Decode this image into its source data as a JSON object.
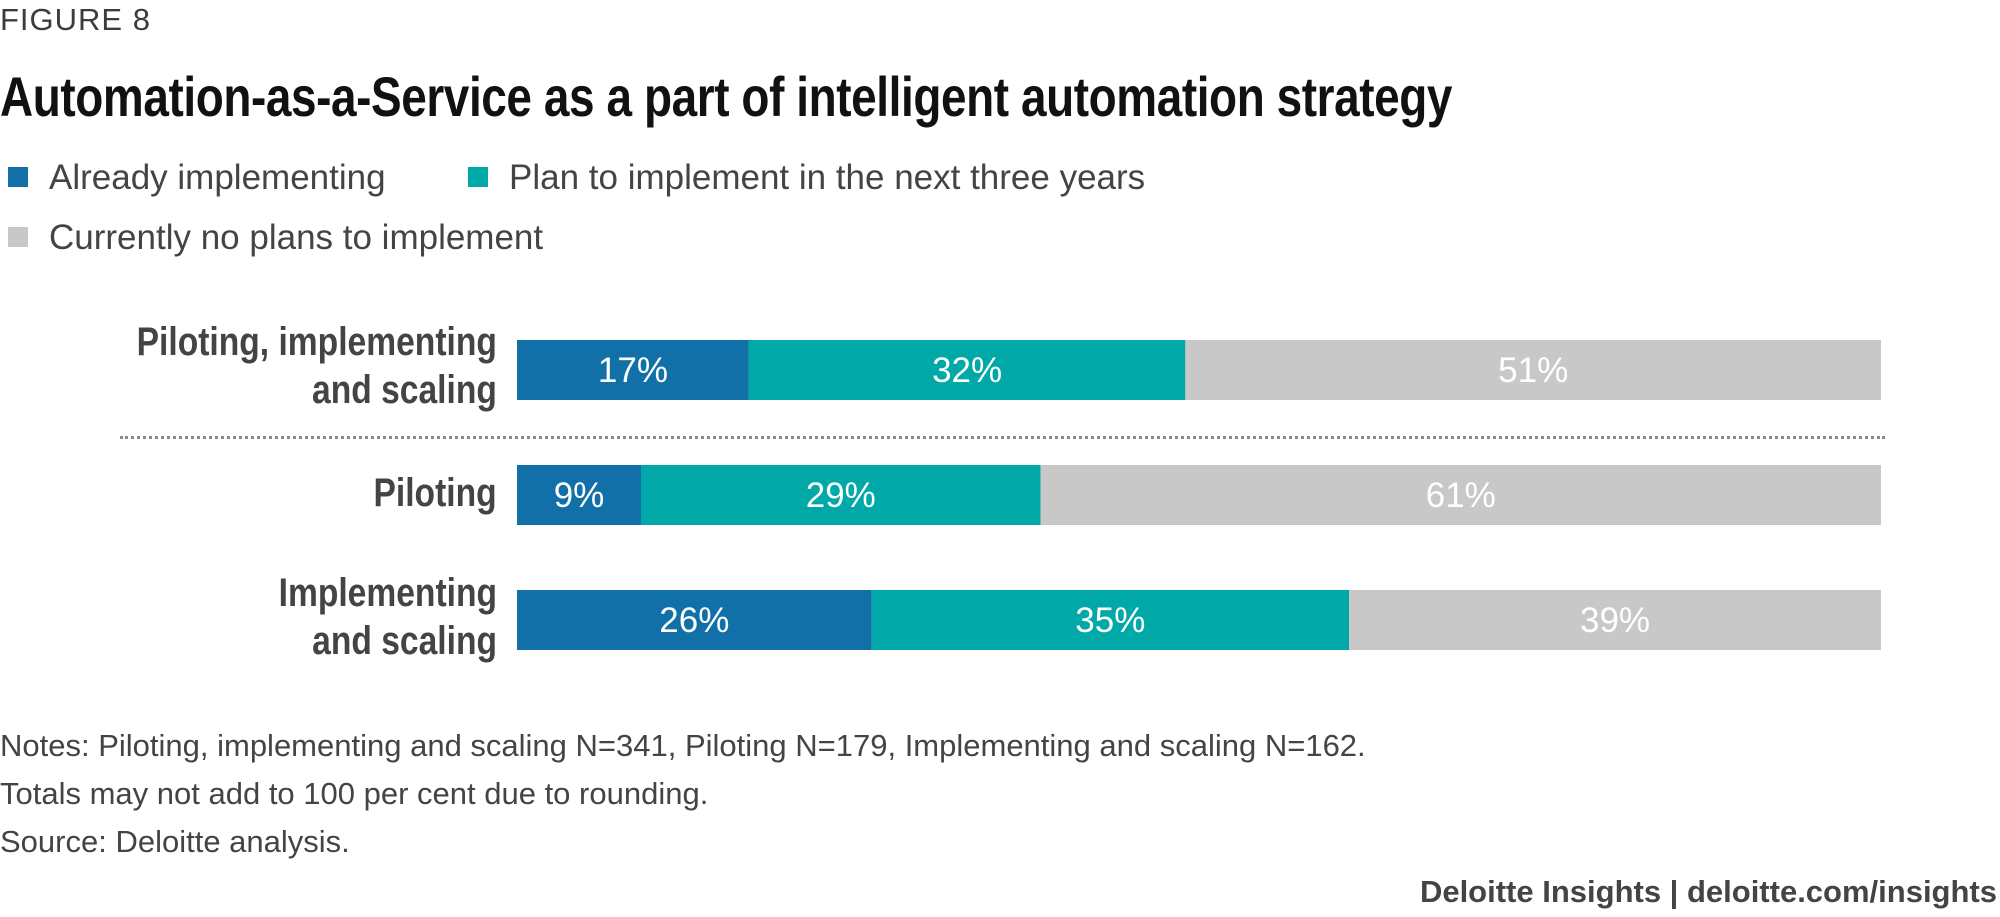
{
  "figure_label": "FIGURE 8",
  "title": "Automation-as-a-Service as a part of intelligent automation strategy",
  "notes": [
    "Notes: Piloting, implementing and scaling N=341, Piloting N=179, Implementing and scaling N=162.",
    "Totals may not add to 100 per cent due to rounding.",
    "Source: Deloitte analysis."
  ],
  "footer": "Deloitte Insights | deloitte.com/insights",
  "colors": {
    "already": "#1270a8",
    "plan": "#00a8a8",
    "no_plans": "#c8c8c8"
  },
  "chart_data": {
    "type": "bar",
    "orientation": "horizontal",
    "stacked": true,
    "title": "Automation-as-a-Service as a part of intelligent automation strategy",
    "xlabel": "",
    "ylabel": "",
    "xlim": [
      0,
      100
    ],
    "legend_position": "top-left",
    "categories": [
      [
        "Piloting, implementing",
        "and scaling"
      ],
      [
        "Piloting"
      ],
      [
        "Implementing",
        "and scaling"
      ]
    ],
    "series": [
      {
        "name": "Already implementing",
        "color": "#1270a8",
        "values": [
          17,
          9,
          26
        ],
        "labels": [
          "17%",
          "9%",
          "26%"
        ]
      },
      {
        "name": "Plan to implement in the next three years",
        "color": "#00a8a8",
        "values": [
          32,
          29,
          35
        ],
        "labels": [
          "32%",
          "29%",
          "35%"
        ]
      },
      {
        "name": "Currently no plans to implement",
        "color": "#c8c8c8",
        "values": [
          51,
          61,
          39
        ],
        "labels": [
          "51%",
          "61%",
          "39%"
        ]
      }
    ]
  }
}
